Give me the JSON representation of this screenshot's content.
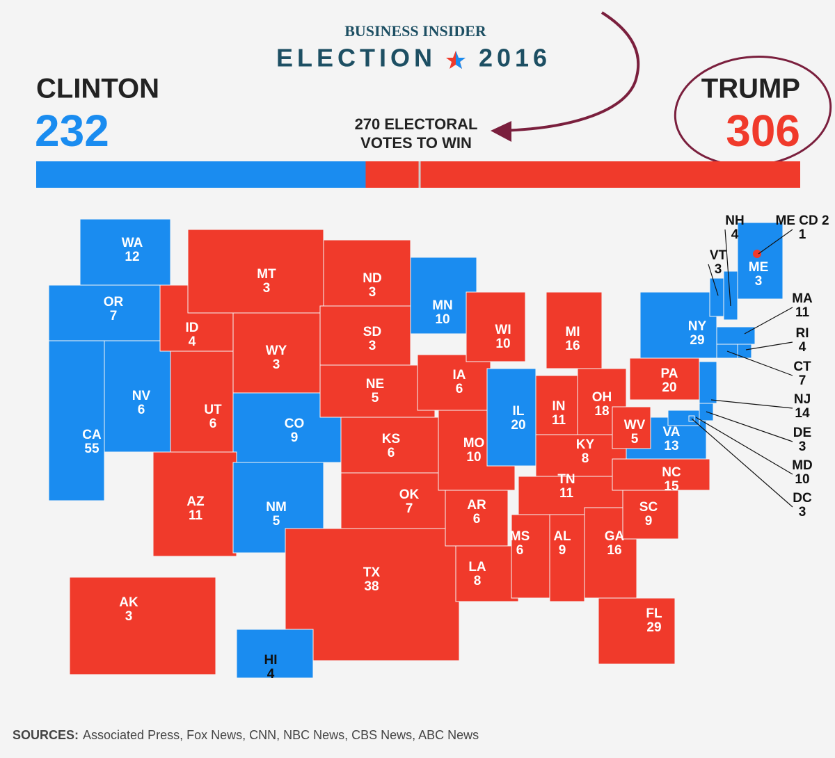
{
  "header": {
    "brand": "BUSINESS INSIDER",
    "title": "ELECTION",
    "year": "2016"
  },
  "candidates": [
    {
      "name": "CLINTON",
      "votes": 232,
      "color": "#1a8cf0"
    },
    {
      "name": "TRUMP",
      "votes": 306,
      "color": "#f03a2b"
    }
  ],
  "threshold": 270,
  "threshold_label": [
    "270 ELECTORAL",
    "VOTES TO WIN"
  ],
  "states": [
    {
      "abbr": "WA",
      "votes": 12,
      "winner": "CLINTON"
    },
    {
      "abbr": "OR",
      "votes": 7,
      "winner": "CLINTON"
    },
    {
      "abbr": "CA",
      "votes": 55,
      "winner": "CLINTON"
    },
    {
      "abbr": "NV",
      "votes": 6,
      "winner": "CLINTON"
    },
    {
      "abbr": "ID",
      "votes": 4,
      "winner": "TRUMP"
    },
    {
      "abbr": "MT",
      "votes": 3,
      "winner": "TRUMP"
    },
    {
      "abbr": "WY",
      "votes": 3,
      "winner": "TRUMP"
    },
    {
      "abbr": "UT",
      "votes": 6,
      "winner": "TRUMP"
    },
    {
      "abbr": "CO",
      "votes": 9,
      "winner": "CLINTON"
    },
    {
      "abbr": "AZ",
      "votes": 11,
      "winner": "TRUMP"
    },
    {
      "abbr": "NM",
      "votes": 5,
      "winner": "CLINTON"
    },
    {
      "abbr": "ND",
      "votes": 3,
      "winner": "TRUMP"
    },
    {
      "abbr": "SD",
      "votes": 3,
      "winner": "TRUMP"
    },
    {
      "abbr": "NE",
      "votes": 5,
      "winner": "TRUMP"
    },
    {
      "abbr": "KS",
      "votes": 6,
      "winner": "TRUMP"
    },
    {
      "abbr": "OK",
      "votes": 7,
      "winner": "TRUMP"
    },
    {
      "abbr": "TX",
      "votes": 38,
      "winner": "TRUMP"
    },
    {
      "abbr": "MN",
      "votes": 10,
      "winner": "CLINTON"
    },
    {
      "abbr": "IA",
      "votes": 6,
      "winner": "TRUMP"
    },
    {
      "abbr": "MO",
      "votes": 10,
      "winner": "TRUMP"
    },
    {
      "abbr": "AR",
      "votes": 6,
      "winner": "TRUMP"
    },
    {
      "abbr": "LA",
      "votes": 8,
      "winner": "TRUMP"
    },
    {
      "abbr": "WI",
      "votes": 10,
      "winner": "TRUMP"
    },
    {
      "abbr": "IL",
      "votes": 20,
      "winner": "CLINTON"
    },
    {
      "abbr": "MI",
      "votes": 16,
      "winner": "TRUMP"
    },
    {
      "abbr": "IN",
      "votes": 11,
      "winner": "TRUMP"
    },
    {
      "abbr": "OH",
      "votes": 18,
      "winner": "TRUMP"
    },
    {
      "abbr": "KY",
      "votes": 8,
      "winner": "TRUMP"
    },
    {
      "abbr": "TN",
      "votes": 11,
      "winner": "TRUMP"
    },
    {
      "abbr": "MS",
      "votes": 6,
      "winner": "TRUMP"
    },
    {
      "abbr": "AL",
      "votes": 9,
      "winner": "TRUMP"
    },
    {
      "abbr": "GA",
      "votes": 16,
      "winner": "TRUMP"
    },
    {
      "abbr": "FL",
      "votes": 29,
      "winner": "TRUMP"
    },
    {
      "abbr": "SC",
      "votes": 9,
      "winner": "TRUMP"
    },
    {
      "abbr": "NC",
      "votes": 15,
      "winner": "TRUMP"
    },
    {
      "abbr": "VA",
      "votes": 13,
      "winner": "CLINTON"
    },
    {
      "abbr": "WV",
      "votes": 5,
      "winner": "TRUMP"
    },
    {
      "abbr": "PA",
      "votes": 20,
      "winner": "TRUMP"
    },
    {
      "abbr": "NY",
      "votes": 29,
      "winner": "CLINTON"
    },
    {
      "abbr": "VT",
      "votes": 3,
      "winner": "CLINTON"
    },
    {
      "abbr": "NH",
      "votes": 4,
      "winner": "CLINTON"
    },
    {
      "abbr": "ME",
      "votes": 3,
      "winner": "CLINTON"
    },
    {
      "abbr": "MA",
      "votes": 11,
      "winner": "CLINTON"
    },
    {
      "abbr": "CT",
      "votes": 7,
      "winner": "CLINTON"
    },
    {
      "abbr": "RI",
      "votes": 4,
      "winner": "CLINTON"
    },
    {
      "abbr": "NJ",
      "votes": 14,
      "winner": "CLINTON"
    },
    {
      "abbr": "DE",
      "votes": 3,
      "winner": "CLINTON"
    },
    {
      "abbr": "MD",
      "votes": 10,
      "winner": "CLINTON"
    },
    {
      "abbr": "DC",
      "votes": 3,
      "winner": "CLINTON"
    },
    {
      "abbr": "AK",
      "votes": 3,
      "winner": "TRUMP"
    },
    {
      "abbr": "HI",
      "votes": 4,
      "winner": "CLINTON"
    },
    {
      "abbr": "ME CD 2",
      "votes": 1,
      "winner": "TRUMP"
    }
  ],
  "sources": {
    "label": "SOURCES:",
    "text": "Associated Press, Fox News, CNN, NBC News, CBS News, ABC News"
  }
}
